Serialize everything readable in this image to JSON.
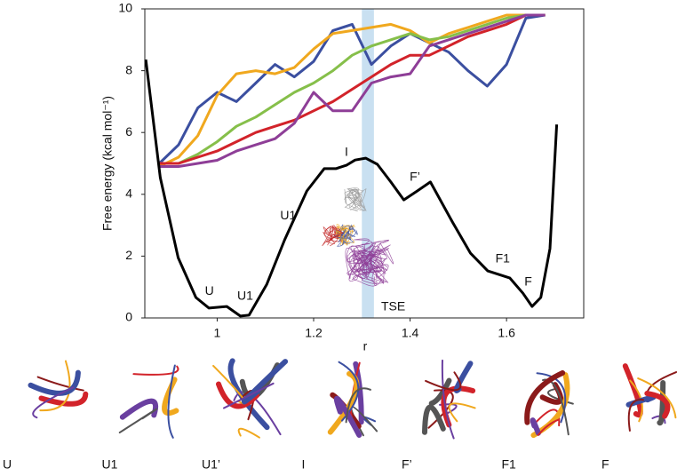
{
  "chart_data": {
    "type": "line",
    "xlabel": "r",
    "ylabel": "Free energy (kcal mol⁻¹)",
    "xlim": [
      0.85,
      1.76
    ],
    "ylim": [
      0,
      10
    ],
    "xticks": [
      1,
      1.2,
      1.4,
      1.6
    ],
    "yticks": [
      0,
      2,
      4,
      6,
      8,
      10
    ],
    "highlight": [
      1.3,
      1.325
    ],
    "highlight_color": "#bcd8ee",
    "series": [
      {
        "name": "blue",
        "color": "#3b4fa0",
        "x": [
          0.88,
          0.92,
          0.96,
          1.0,
          1.04,
          1.08,
          1.12,
          1.16,
          1.2,
          1.24,
          1.28,
          1.32,
          1.36,
          1.4,
          1.44,
          1.48,
          1.52,
          1.56,
          1.6,
          1.64,
          1.68
        ],
        "values": [
          5.0,
          5.6,
          6.8,
          7.3,
          7.0,
          7.6,
          8.2,
          7.8,
          8.3,
          9.3,
          9.5,
          8.2,
          8.8,
          9.2,
          8.9,
          8.6,
          8.0,
          7.5,
          8.2,
          9.7,
          9.8
        ]
      },
      {
        "name": "orange",
        "color": "#f0a81e",
        "x": [
          0.88,
          0.92,
          0.96,
          1.0,
          1.04,
          1.08,
          1.12,
          1.16,
          1.2,
          1.24,
          1.28,
          1.32,
          1.36,
          1.4,
          1.44,
          1.48,
          1.52,
          1.56,
          1.6,
          1.64,
          1.68
        ],
        "values": [
          4.9,
          5.2,
          5.9,
          7.2,
          7.9,
          8.0,
          7.9,
          8.1,
          8.7,
          9.2,
          9.3,
          9.4,
          9.5,
          9.3,
          8.9,
          9.2,
          9.4,
          9.6,
          9.8,
          9.8,
          9.8
        ]
      },
      {
        "name": "green",
        "color": "#86bf4a",
        "x": [
          0.88,
          0.92,
          0.96,
          1.0,
          1.04,
          1.08,
          1.12,
          1.16,
          1.2,
          1.24,
          1.28,
          1.32,
          1.36,
          1.4,
          1.44,
          1.48,
          1.52,
          1.56,
          1.6,
          1.64,
          1.68
        ],
        "values": [
          5.0,
          5.0,
          5.3,
          5.7,
          6.2,
          6.5,
          6.9,
          7.3,
          7.6,
          8.0,
          8.5,
          8.8,
          9.0,
          9.2,
          9.0,
          9.1,
          9.3,
          9.5,
          9.7,
          9.8,
          9.8
        ]
      },
      {
        "name": "red",
        "color": "#d2232a",
        "x": [
          0.88,
          0.92,
          0.96,
          1.0,
          1.04,
          1.08,
          1.12,
          1.16,
          1.2,
          1.24,
          1.28,
          1.32,
          1.36,
          1.4,
          1.44,
          1.48,
          1.52,
          1.56,
          1.6,
          1.64,
          1.68
        ],
        "values": [
          5.0,
          5.0,
          5.2,
          5.4,
          5.7,
          6.0,
          6.2,
          6.4,
          6.7,
          7.0,
          7.4,
          7.8,
          8.2,
          8.5,
          8.5,
          8.8,
          9.1,
          9.3,
          9.5,
          9.8,
          9.8
        ]
      },
      {
        "name": "purple",
        "color": "#8e3e97",
        "x": [
          0.88,
          0.92,
          0.96,
          1.0,
          1.04,
          1.08,
          1.12,
          1.16,
          1.2,
          1.24,
          1.28,
          1.32,
          1.36,
          1.4,
          1.44,
          1.48,
          1.52,
          1.56,
          1.6,
          1.64,
          1.68
        ],
        "values": [
          4.9,
          4.9,
          5.0,
          5.1,
          5.4,
          5.6,
          5.8,
          6.3,
          7.3,
          6.7,
          6.7,
          7.6,
          7.8,
          7.9,
          8.8,
          9.0,
          9.2,
          9.4,
          9.6,
          9.8,
          9.8
        ]
      },
      {
        "name": "free energy",
        "color": "#000000",
        "x": [
          0.852,
          0.882,
          0.919,
          0.956,
          0.983,
          1.02,
          1.048,
          1.066,
          1.103,
          1.14,
          1.186,
          1.222,
          1.246,
          1.268,
          1.286,
          1.308,
          1.332,
          1.36,
          1.387,
          1.415,
          1.442,
          1.488,
          1.525,
          1.561,
          1.607,
          1.634,
          1.653,
          1.671,
          1.69,
          1.704
        ],
        "values": [
          8.36,
          4.54,
          1.95,
          0.66,
          0.32,
          0.37,
          0.06,
          0.09,
          1.09,
          2.53,
          4.11,
          4.83,
          4.83,
          4.94,
          5.11,
          5.17,
          4.97,
          4.4,
          3.82,
          4.11,
          4.4,
          3.1,
          2.1,
          1.52,
          1.29,
          0.8,
          0.37,
          0.66,
          2.24,
          6.26
        ]
      }
    ],
    "annotations": [
      {
        "text": "U",
        "x": 0.984,
        "y": 0.85
      },
      {
        "text": "U1",
        "x": 1.058,
        "y": 0.7
      },
      {
        "text": "U1’",
        "x": 1.15,
        "y": 3.3
      },
      {
        "text": "I",
        "x": 1.268,
        "y": 5.35
      },
      {
        "text": "F’",
        "x": 1.41,
        "y": 4.55
      },
      {
        "text": "F1",
        "x": 1.592,
        "y": 1.9
      },
      {
        "text": "F",
        "x": 1.645,
        "y": 1.15
      },
      {
        "text": "TSE",
        "x": 1.365,
        "y": 0.35
      }
    ]
  },
  "structures": [
    "U",
    "U1",
    "U1’",
    "I",
    "F’",
    "F1",
    "F"
  ]
}
